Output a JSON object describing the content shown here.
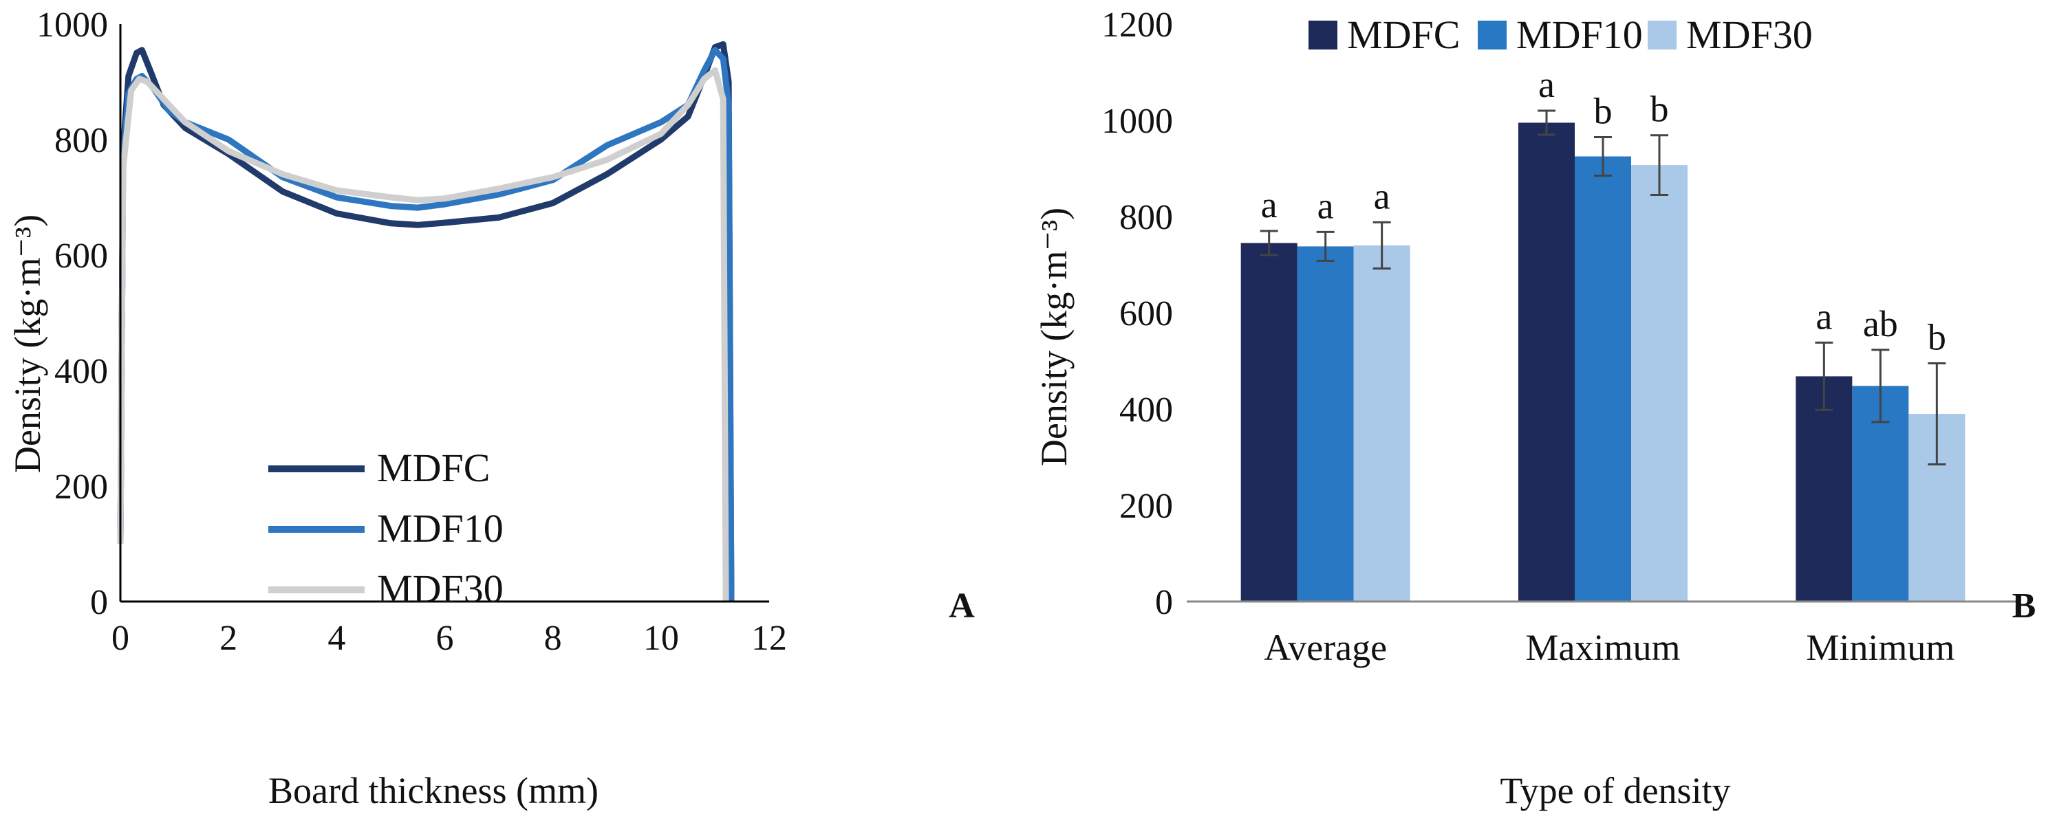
{
  "chart_data": [
    {
      "type": "line",
      "panel_label": "A",
      "xlabel": "Board thickness (mm)",
      "ylabel": "Density (kg·m⁻³)",
      "xlim": [
        0,
        12
      ],
      "ylim": [
        0,
        1000
      ],
      "xticks": [
        "0",
        "2",
        "4",
        "6",
        "8",
        "10",
        "12"
      ],
      "yticks": [
        "0",
        "200",
        "400",
        "600",
        "800",
        "1000"
      ],
      "legend_position": "bottom-left",
      "series": [
        {
          "name": "MDFC",
          "color": "#1f3a6b",
          "points": [
            [
              0,
              100
            ],
            [
              0.05,
              780
            ],
            [
              0.15,
              910
            ],
            [
              0.3,
              950
            ],
            [
              0.4,
              955
            ],
            [
              0.55,
              920
            ],
            [
              0.8,
              860
            ],
            [
              1.2,
              820
            ],
            [
              2,
              775
            ],
            [
              3,
              710
            ],
            [
              4,
              672
            ],
            [
              5,
              655
            ],
            [
              5.5,
              652
            ],
            [
              6,
              656
            ],
            [
              7,
              665
            ],
            [
              8,
              690
            ],
            [
              9,
              740
            ],
            [
              10,
              800
            ],
            [
              10.5,
              840
            ],
            [
              10.8,
              910
            ],
            [
              11.0,
              960
            ],
            [
              11.15,
              965
            ],
            [
              11.25,
              900
            ],
            [
              11.3,
              0
            ]
          ]
        },
        {
          "name": "MDF10",
          "color": "#2e77c0",
          "points": [
            [
              0,
              100
            ],
            [
              0.05,
              760
            ],
            [
              0.15,
              880
            ],
            [
              0.3,
              905
            ],
            [
              0.4,
              910
            ],
            [
              0.6,
              890
            ],
            [
              0.9,
              850
            ],
            [
              1.2,
              830
            ],
            [
              2,
              800
            ],
            [
              3,
              735
            ],
            [
              4,
              700
            ],
            [
              5,
              685
            ],
            [
              5.5,
              682
            ],
            [
              6,
              688
            ],
            [
              7,
              705
            ],
            [
              8,
              730
            ],
            [
              9,
              790
            ],
            [
              10,
              830
            ],
            [
              10.5,
              860
            ],
            [
              10.8,
              920
            ],
            [
              11.0,
              955
            ],
            [
              11.15,
              940
            ],
            [
              11.25,
              860
            ],
            [
              11.3,
              0
            ]
          ]
        },
        {
          "name": "MDF30",
          "color": "#cfcfcf",
          "points": [
            [
              0,
              100
            ],
            [
              0.05,
              750
            ],
            [
              0.2,
              885
            ],
            [
              0.35,
              905
            ],
            [
              0.5,
              900
            ],
            [
              0.8,
              870
            ],
            [
              1.2,
              830
            ],
            [
              2,
              780
            ],
            [
              3,
              740
            ],
            [
              4,
              712
            ],
            [
              5,
              700
            ],
            [
              5.5,
              695
            ],
            [
              6,
              698
            ],
            [
              7,
              715
            ],
            [
              8,
              735
            ],
            [
              9,
              765
            ],
            [
              10,
              810
            ],
            [
              10.5,
              860
            ],
            [
              10.8,
              905
            ],
            [
              11.0,
              920
            ],
            [
              11.15,
              870
            ],
            [
              11.2,
              0
            ]
          ]
        }
      ]
    },
    {
      "type": "bar",
      "panel_label": "B",
      "xlabel": "Type of density",
      "ylabel": "Density (kg·m⁻³)",
      "ylim": [
        0,
        1200
      ],
      "yticks": [
        "0",
        "200",
        "400",
        "600",
        "800",
        "1000",
        "1200"
      ],
      "legend_position": "top",
      "categories": [
        "Average",
        "Maximum",
        "Minimum"
      ],
      "series": [
        {
          "name": "MDFC",
          "color": "#1e2a5a",
          "values": [
            745,
            995,
            468
          ],
          "errors": [
            25,
            25,
            70
          ],
          "letters": [
            "a",
            "a",
            "a"
          ]
        },
        {
          "name": "MDF10",
          "color": "#2878c4",
          "values": [
            738,
            925,
            448
          ],
          "errors": [
            30,
            40,
            75
          ],
          "letters": [
            "a",
            "b",
            "ab"
          ]
        },
        {
          "name": "MDF30",
          "color": "#aac8e8",
          "values": [
            740,
            907,
            390
          ],
          "errors": [
            48,
            62,
            105
          ],
          "letters": [
            "a",
            "b",
            "b"
          ]
        }
      ]
    }
  ]
}
